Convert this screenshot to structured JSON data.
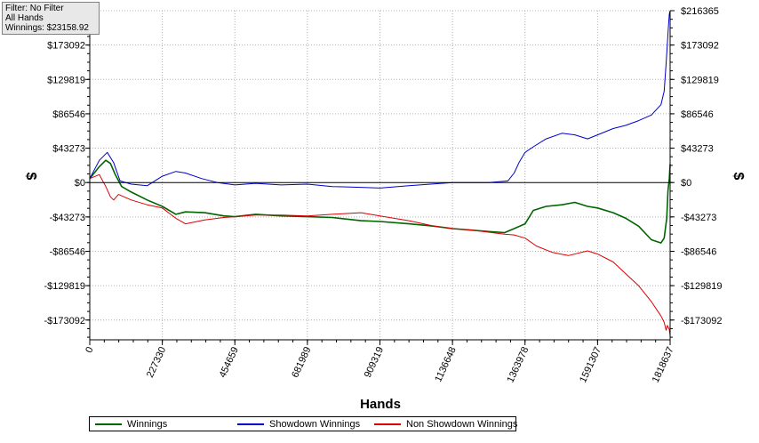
{
  "filter_box": {
    "line1": "Filter: No Filter",
    "line2": "All Hands",
    "line3": "Winnings: $23158.92"
  },
  "chart_data": {
    "type": "line",
    "xlabel": "Hands",
    "ylabel": "$",
    "ylabel_right": "$",
    "xlim": [
      0,
      1818637
    ],
    "ylim": [
      -198000,
      216365
    ],
    "x_ticks": [
      0,
      227330,
      454659,
      681989,
      909319,
      1136648,
      1363978,
      1591307,
      1818637
    ],
    "x_tick_labels": [
      "0",
      "227330",
      "454659",
      "681989",
      "909319",
      "1136648",
      "1363978",
      "1591307",
      "1818637"
    ],
    "y_ticks": [
      -173092,
      -129819,
      -86546,
      -43273,
      0,
      43273,
      86546,
      129819,
      173092
    ],
    "y_tick_labels": [
      "-$173092",
      "-$129819",
      "-$86546",
      "-$43273",
      "$0",
      "$43273",
      "$86546",
      "$129819",
      "$173092"
    ],
    "y_ticks_right": [
      -173092,
      -129819,
      -86546,
      -43273,
      0,
      43273,
      86546,
      129819,
      173092,
      216365
    ],
    "y_tick_labels_right": [
      "-$173092",
      "-$129819",
      "-$86546",
      "-$43273",
      "$0",
      "$43273",
      "$86546",
      "$129819",
      "$173092",
      "$216365"
    ],
    "grid": true,
    "legend_position": "bottom-left",
    "series": [
      {
        "name": "Winnings",
        "color": "#006400",
        "x": [
          0,
          30000,
          50000,
          65000,
          80000,
          100000,
          130000,
          180000,
          227330,
          270000,
          300000,
          360000,
          420000,
          454659,
          520000,
          600000,
          681989,
          760000,
          850000,
          909319,
          1000000,
          1080000,
          1136648,
          1200000,
          1260000,
          1300000,
          1330000,
          1363978,
          1390000,
          1430000,
          1480000,
          1520000,
          1560000,
          1591307,
          1640000,
          1680000,
          1720000,
          1760000,
          1790000,
          1800000,
          1808000,
          1812000,
          1816000,
          1818637
        ],
        "y": [
          5000,
          20000,
          28000,
          24000,
          10000,
          -5000,
          -12000,
          -22000,
          -30000,
          -40000,
          -37000,
          -38000,
          -42000,
          -43000,
          -40000,
          -42000,
          -43000,
          -44000,
          -48000,
          -49000,
          -52000,
          -55000,
          -58000,
          -60000,
          -62000,
          -63000,
          -58000,
          -52000,
          -35000,
          -30000,
          -28000,
          -25000,
          -30000,
          -32000,
          -38000,
          -45000,
          -55000,
          -72000,
          -76000,
          -70000,
          -45000,
          -10000,
          5000,
          23158.92
        ]
      },
      {
        "name": "Showdown Winnings",
        "color": "#0000cc",
        "x": [
          0,
          30000,
          55000,
          75000,
          95000,
          130000,
          180000,
          227330,
          270000,
          300000,
          350000,
          400000,
          454659,
          520000,
          600000,
          681989,
          760000,
          850000,
          909319,
          1000000,
          1136648,
          1250000,
          1310000,
          1330000,
          1345000,
          1363978,
          1390000,
          1430000,
          1480000,
          1520000,
          1560000,
          1591307,
          1640000,
          1680000,
          1720000,
          1760000,
          1790000,
          1800000,
          1806000,
          1810000,
          1814000,
          1816000,
          1818637
        ],
        "y": [
          5000,
          28000,
          38000,
          25000,
          2000,
          -2000,
          -4000,
          8000,
          14000,
          12000,
          5000,
          0,
          -3000,
          -1000,
          -3000,
          -2000,
          -5000,
          -6000,
          -7000,
          -4000,
          0,
          0,
          2000,
          12000,
          25000,
          38000,
          45000,
          55000,
          62000,
          60000,
          55000,
          60000,
          68000,
          72000,
          78000,
          85000,
          98000,
          115000,
          150000,
          175000,
          200000,
          212000,
          216365
        ]
      },
      {
        "name": "Non Showdown Winnings",
        "color": "#dd0000",
        "x": [
          0,
          30000,
          50000,
          65000,
          75000,
          90000,
          130000,
          180000,
          227330,
          270000,
          300000,
          360000,
          420000,
          454659,
          520000,
          600000,
          681989,
          760000,
          850000,
          909319,
          1000000,
          1080000,
          1136648,
          1200000,
          1260000,
          1300000,
          1330000,
          1363978,
          1400000,
          1450000,
          1500000,
          1560000,
          1591307,
          1640000,
          1680000,
          1720000,
          1760000,
          1790000,
          1800000,
          1806000,
          1810000,
          1816000,
          1818637
        ],
        "y": [
          5000,
          10000,
          -5000,
          -18000,
          -22000,
          -15000,
          -22000,
          -28000,
          -32000,
          -45000,
          -52000,
          -47000,
          -44000,
          -43000,
          -41000,
          -41000,
          -42000,
          -40000,
          -38000,
          -42000,
          -48000,
          -55000,
          -58000,
          -60000,
          -63000,
          -65000,
          -66000,
          -70000,
          -80000,
          -88000,
          -92000,
          -86000,
          -90000,
          -100000,
          -115000,
          -130000,
          -150000,
          -168000,
          -176000,
          -186000,
          -180000,
          -185000,
          -193000
        ]
      }
    ]
  }
}
